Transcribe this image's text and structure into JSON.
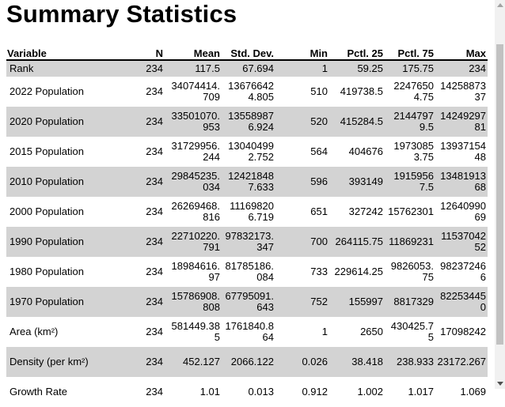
{
  "title": "Summary Statistics",
  "columns": [
    "Variable",
    "N",
    "Mean",
    "Std. Dev.",
    "Min",
    "Pctl. 25",
    "Pctl. 75",
    "Max"
  ],
  "rows": [
    {
      "cells": [
        "Rank",
        "234",
        "117.5",
        "67.694",
        "1",
        "59.25",
        "175.75",
        "234"
      ]
    },
    {
      "cells": [
        "2022 Population",
        "234",
        "34074414.709",
        "136766424.805",
        "510",
        "419738.5",
        "22476504.75",
        "1425887337"
      ]
    },
    {
      "cells": [
        "2020 Population",
        "234",
        "33501070.953",
        "135589876.924",
        "520",
        "415284.5",
        "21447979.5",
        "1424929781"
      ]
    },
    {
      "cells": [
        "2015 Population",
        "234",
        "31729956.244",
        "130404992.752",
        "564",
        "404676",
        "19730853.75",
        "1393715448"
      ]
    },
    {
      "cells": [
        "2010 Population",
        "234",
        "29845235.034",
        "124218487.633",
        "596",
        "393149",
        "19159567.5",
        "1348191368"
      ]
    },
    {
      "cells": [
        "2000 Population",
        "234",
        "26269468.816",
        "111698206.719",
        "651",
        "327242",
        "15762301",
        "1264099069"
      ]
    },
    {
      "cells": [
        "1990 Population",
        "234",
        "22710220.791",
        "97832173.347",
        "700",
        "264115.75",
        "11869231",
        "1153704252"
      ]
    },
    {
      "cells": [
        "1980 Population",
        "234",
        "18984616.97",
        "81785186.084",
        "733",
        "229614.25",
        "9826053.75",
        "982372466"
      ]
    },
    {
      "cells": [
        "1970 Population",
        "234",
        "15786908.808",
        "67795091.643",
        "752",
        "155997",
        "8817329",
        "822534450"
      ]
    },
    {
      "cells": [
        "Area (km²)",
        "234",
        "581449.385",
        "1761840.864",
        "1",
        "2650",
        "430425.75",
        "17098242"
      ]
    },
    {
      "cells": [
        "Density (per km²)",
        "234",
        "452.127",
        "2066.122",
        "0.026",
        "38.418",
        "238.933",
        "23172.267"
      ]
    },
    {
      "cells": [
        "Growth Rate",
        "234",
        "1.01",
        "0.013",
        "0.912",
        "1.002",
        "1.017",
        "1.069"
      ]
    }
  ]
}
